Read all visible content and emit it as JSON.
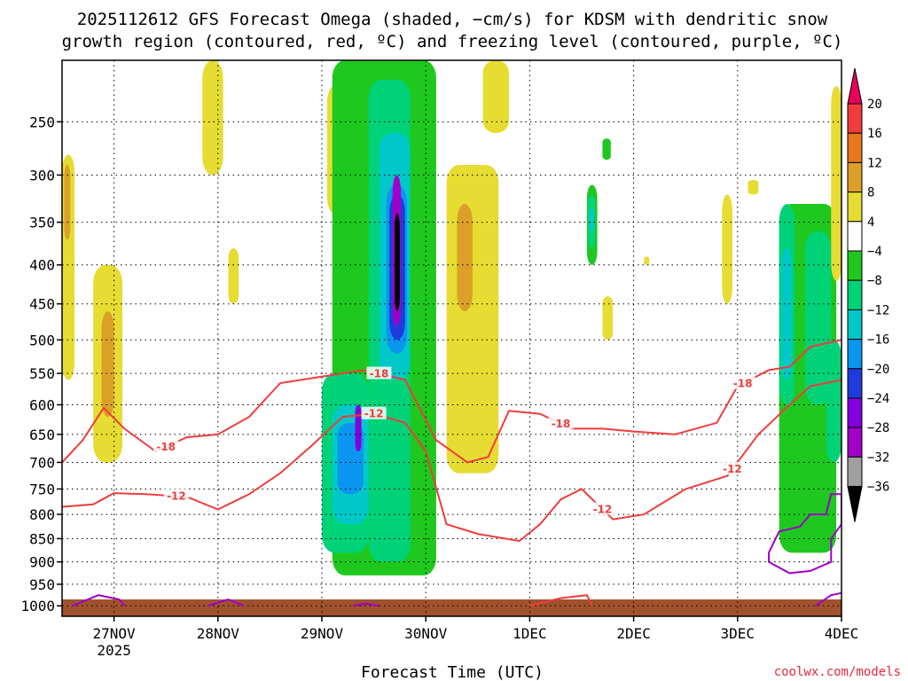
{
  "title_line1": "2025112612 GFS Forecast Omega (shaded, −cm/s) for KDSM with dendritic snow",
  "title_line2": "growth region (contoured, red, ºC) and freezing level (contoured, purple, ºC)",
  "credit": "coolwx.com/models",
  "chart_data": {
    "type": "heatmap",
    "title": "2025112612 GFS Forecast Omega (shaded, −cm/s) for KDSM with dendritic snow growth region (contoured, red, ºC) and freezing level (contoured, purple, ºC)",
    "xlabel": "Forecast Time (UTC)",
    "ylabel": "",
    "x_ticks": [
      "27NOV",
      "28NOV",
      "29NOV",
      "30NOV",
      "1DEC",
      "2DEC",
      "3DEC",
      "4DEC"
    ],
    "x_tick_sub": "2025",
    "x_range_days": [
      26.5,
      34.0
    ],
    "y_ticks": [
      250,
      300,
      350,
      400,
      450,
      500,
      550,
      600,
      650,
      700,
      750,
      800,
      850,
      900,
      950,
      1000
    ],
    "y_range_hpa": [
      200,
      1025
    ],
    "grid": true,
    "colorbar": {
      "labels": [
        "20",
        "16",
        "12",
        "8",
        "4",
        "−4",
        "−8",
        "−12",
        "−16",
        "−20",
        "−24",
        "−28",
        "−32",
        "−36"
      ],
      "colors": [
        "#e8005a",
        "#f03c3c",
        "#e8781e",
        "#dca028",
        "#e6dc32",
        "#ffffff",
        "#1ec81e",
        "#00d278",
        "#00c8c8",
        "#0a96f0",
        "#1e3cdc",
        "#8200dc",
        "#a000c8",
        "#a0a0a0",
        "#000000"
      ]
    },
    "dgz_contours": [
      {
        "label": "-18",
        "points": [
          [
            26.5,
            700
          ],
          [
            26.7,
            660
          ],
          [
            26.9,
            605
          ],
          [
            27.1,
            640
          ],
          [
            27.4,
            680
          ],
          [
            27.7,
            655
          ],
          [
            28.0,
            650
          ],
          [
            28.3,
            620
          ],
          [
            28.6,
            565
          ],
          [
            29.0,
            555
          ],
          [
            29.4,
            545
          ],
          [
            29.8,
            560
          ],
          [
            30.1,
            660
          ],
          [
            30.4,
            700
          ],
          [
            30.6,
            690
          ],
          [
            30.8,
            610
          ],
          [
            31.1,
            615
          ],
          [
            31.4,
            640
          ],
          [
            31.7,
            640
          ],
          [
            32.0,
            645
          ],
          [
            32.4,
            650
          ],
          [
            32.8,
            630
          ],
          [
            33.0,
            570
          ],
          [
            33.3,
            545
          ],
          [
            33.5,
            540
          ],
          [
            33.7,
            510
          ],
          [
            34.0,
            500
          ]
        ],
        "labels_at": [
          [
            27.5,
            "-18"
          ],
          [
            29.55,
            "-18"
          ],
          [
            31.3,
            "-18"
          ],
          [
            33.05,
            "-18"
          ]
        ]
      },
      {
        "label": "-12",
        "points": [
          [
            26.5,
            785
          ],
          [
            26.8,
            780
          ],
          [
            27.0,
            758
          ],
          [
            27.3,
            760
          ],
          [
            27.7,
            765
          ],
          [
            28.0,
            790
          ],
          [
            28.3,
            760
          ],
          [
            28.6,
            720
          ],
          [
            28.9,
            670
          ],
          [
            29.2,
            620
          ],
          [
            29.5,
            615
          ],
          [
            29.8,
            630
          ],
          [
            30.0,
            680
          ],
          [
            30.2,
            820
          ],
          [
            30.5,
            840
          ],
          [
            30.9,
            855
          ],
          [
            31.1,
            820
          ],
          [
            31.3,
            770
          ],
          [
            31.5,
            750
          ],
          [
            31.8,
            810
          ],
          [
            32.1,
            800
          ],
          [
            32.5,
            750
          ],
          [
            32.9,
            725
          ],
          [
            33.2,
            650
          ],
          [
            33.5,
            600
          ],
          [
            33.7,
            570
          ],
          [
            34.0,
            560
          ]
        ],
        "labels_at": [
          [
            27.6,
            "-12"
          ],
          [
            29.5,
            "-12"
          ],
          [
            31.7,
            "-12"
          ],
          [
            32.95,
            "-12"
          ]
        ]
      },
      {
        "label": "-18",
        "points": [
          [
            31.0,
            1000
          ],
          [
            31.3,
            982
          ],
          [
            31.55,
            975
          ],
          [
            31.6,
            1000
          ]
        ],
        "labels_at": []
      }
    ],
    "freezing_contours": [
      {
        "label": "0",
        "points": [
          [
            26.6,
            1000
          ],
          [
            26.85,
            975
          ],
          [
            27.05,
            985
          ],
          [
            27.1,
            1000
          ]
        ]
      },
      {
        "label": "0",
        "points": [
          [
            27.9,
            1000
          ],
          [
            28.1,
            985
          ],
          [
            28.25,
            1000
          ]
        ]
      },
      {
        "label": "0",
        "points": [
          [
            29.3,
            1000
          ],
          [
            29.42,
            995
          ],
          [
            29.55,
            1000
          ]
        ]
      },
      {
        "label": "0",
        "points": [
          [
            33.3,
            880
          ],
          [
            33.4,
            835
          ],
          [
            33.6,
            825
          ],
          [
            33.7,
            800
          ],
          [
            33.85,
            800
          ],
          [
            33.9,
            760
          ],
          [
            34.0,
            760
          ],
          [
            34.0,
            820
          ],
          [
            33.9,
            850
          ],
          [
            33.9,
            900
          ],
          [
            33.7,
            920
          ],
          [
            33.5,
            925
          ],
          [
            33.3,
            900
          ],
          [
            33.3,
            880
          ]
        ]
      },
      {
        "label": "0",
        "points": [
          [
            33.75,
            1000
          ],
          [
            33.9,
            975
          ],
          [
            34.0,
            970
          ]
        ]
      }
    ],
    "omega_regions": [
      {
        "level": "4",
        "x0": 26.5,
        "x1": 26.62,
        "p0": 280,
        "p1": 560
      },
      {
        "level": "8",
        "x0": 26.52,
        "x1": 26.58,
        "p0": 290,
        "p1": 370
      },
      {
        "level": "4",
        "x0": 26.8,
        "x1": 27.08,
        "p0": 400,
        "p1": 700
      },
      {
        "level": "8",
        "x0": 26.88,
        "x1": 27.0,
        "p0": 460,
        "p1": 620
      },
      {
        "level": "4",
        "x0": 27.85,
        "x1": 28.05,
        "p0": 200,
        "p1": 300
      },
      {
        "level": "4",
        "x0": 28.1,
        "x1": 28.2,
        "p0": 380,
        "p1": 450
      },
      {
        "level": "4",
        "x0": 29.05,
        "x1": 29.18,
        "p0": 220,
        "p1": 340
      },
      {
        "level": "-4",
        "x0": 29.1,
        "x1": 30.1,
        "p0": 200,
        "p1": 930
      },
      {
        "level": "-8",
        "x0": 29.45,
        "x1": 29.85,
        "p0": 215,
        "p1": 900
      },
      {
        "level": "-8",
        "x0": 29.0,
        "x1": 29.45,
        "p0": 550,
        "p1": 880
      },
      {
        "level": "-12",
        "x0": 29.1,
        "x1": 29.45,
        "p0": 600,
        "p1": 820
      },
      {
        "level": "-12",
        "x0": 29.55,
        "x1": 29.85,
        "p0": 260,
        "p1": 560
      },
      {
        "level": "-16",
        "x0": 29.15,
        "x1": 29.4,
        "p0": 630,
        "p1": 760
      },
      {
        "level": "-16",
        "x0": 29.62,
        "x1": 29.82,
        "p0": 310,
        "p1": 520
      },
      {
        "level": "-20",
        "x0": 29.65,
        "x1": 29.8,
        "p0": 320,
        "p1": 500
      },
      {
        "level": "-24",
        "x0": 29.32,
        "x1": 29.38,
        "p0": 600,
        "p1": 680
      },
      {
        "level": "-28",
        "x0": 29.68,
        "x1": 29.76,
        "p0": 300,
        "p1": 480
      },
      {
        "level": "-36",
        "x0": 29.7,
        "x1": 29.75,
        "p0": 340,
        "p1": 460
      },
      {
        "level": "4",
        "x0": 30.2,
        "x1": 30.7,
        "p0": 290,
        "p1": 720
      },
      {
        "level": "8",
        "x0": 30.3,
        "x1": 30.45,
        "p0": 330,
        "p1": 460
      },
      {
        "level": "4",
        "x0": 30.55,
        "x1": 30.8,
        "p0": 200,
        "p1": 260
      },
      {
        "level": "-4",
        "x0": 31.55,
        "x1": 31.65,
        "p0": 310,
        "p1": 400
      },
      {
        "level": "-8",
        "x0": 31.56,
        "x1": 31.63,
        "p0": 320,
        "p1": 380
      },
      {
        "level": "-12",
        "x0": 31.57,
        "x1": 31.62,
        "p0": 335,
        "p1": 360
      },
      {
        "level": "-4",
        "x0": 31.7,
        "x1": 31.78,
        "p0": 265,
        "p1": 285
      },
      {
        "level": "4",
        "x0": 31.7,
        "x1": 31.8,
        "p0": 440,
        "p1": 500
      },
      {
        "level": "4",
        "x0": 32.1,
        "x1": 32.15,
        "p0": 390,
        "p1": 400
      },
      {
        "level": "4",
        "x0": 32.85,
        "x1": 32.95,
        "p0": 320,
        "p1": 450
      },
      {
        "level": "4",
        "x0": 33.1,
        "x1": 33.2,
        "p0": 305,
        "p1": 320
      },
      {
        "level": "-4",
        "x0": 33.4,
        "x1": 33.95,
        "p0": 330,
        "p1": 880
      },
      {
        "level": "-8",
        "x0": 33.4,
        "x1": 33.55,
        "p0": 330,
        "p1": 600
      },
      {
        "level": "-8",
        "x0": 33.65,
        "x1": 33.9,
        "p0": 360,
        "p1": 600
      },
      {
        "level": "-12",
        "x0": 33.42,
        "x1": 33.52,
        "p0": 380,
        "p1": 560
      },
      {
        "level": "-8",
        "x0": 33.85,
        "x1": 34.0,
        "p0": 500,
        "p1": 700
      },
      {
        "level": "4",
        "x0": 33.9,
        "x1": 34.0,
        "p0": 220,
        "p1": 420
      }
    ],
    "ground_top_hpa": 985
  }
}
